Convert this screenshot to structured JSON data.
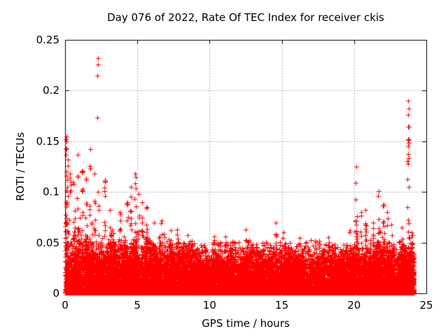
{
  "chart_data": {
    "type": "scatter",
    "title": "Day 076 of 2022, Rate Of TEC Index for receiver ckis",
    "xlabel": "GPS time / hours",
    "ylabel": "ROTI / TECUs",
    "xlim": [
      0,
      25
    ],
    "ylim": [
      0,
      0.25
    ],
    "xticks": {
      "values": [
        0,
        5,
        10,
        15,
        20,
        25
      ],
      "labels": [
        "0",
        "5",
        "10",
        "15",
        "20",
        "25"
      ]
    },
    "yticks": {
      "values": [
        0,
        0.05,
        0.1,
        0.15,
        0.2,
        0.25
      ],
      "labels": [
        "0",
        "0.05",
        "0.1",
        "0.15",
        "0.2",
        "0.25"
      ]
    },
    "grid": {
      "show": true,
      "style": "dotted",
      "color": "#b0b0b0"
    },
    "axis_color": "#000000",
    "background_color": "#ffffff",
    "marker": {
      "shape": "plus",
      "color": "#ff0000",
      "size": 7
    },
    "legend": "none",
    "x_data_range": [
      0,
      24.15
    ],
    "point_distribution": {
      "note": "Dense scatter of red '+' ROTI samples estimated from image: near-solid band 0-0.03 TECU all day, spiky canopy to ~0.05-0.07, large activity spikes near hours 0-6 and 20-24.",
      "baseline": {
        "n": 13500,
        "max": 0.042,
        "power": 2.4
      },
      "canopy_bin_hours": 0.5,
      "canopy_max": [
        0.1,
        0.085,
        0.075,
        0.075,
        0.072,
        0.07,
        0.065,
        0.065,
        0.07,
        0.075,
        0.075,
        0.07,
        0.06,
        0.06,
        0.055,
        0.055,
        0.05,
        0.052,
        0.048,
        0.046,
        0.05,
        0.048,
        0.05,
        0.046,
        0.048,
        0.055,
        0.046,
        0.048,
        0.05,
        0.06,
        0.052,
        0.048,
        0.046,
        0.047,
        0.046,
        0.046,
        0.05,
        0.046,
        0.047,
        0.054,
        0.065,
        0.062,
        0.06,
        0.065,
        0.065,
        0.058,
        0.052,
        0.062,
        0.05
      ],
      "trees": {
        "count": 270,
        "points_min": 6,
        "points_max": 14,
        "x_jitter": 0.14
      },
      "spikes": [
        [
          0.08,
          0.155,
          20
        ],
        [
          0.18,
          0.132,
          12
        ],
        [
          0.35,
          0.118,
          8
        ],
        [
          0.55,
          0.11,
          6
        ],
        [
          0.85,
          0.137,
          8
        ],
        [
          1.2,
          0.121,
          10
        ],
        [
          1.45,
          0.113,
          6
        ],
        [
          1.72,
          0.142,
          9
        ],
        [
          2.05,
          0.118,
          8
        ],
        [
          2.3,
          0.1,
          6
        ],
        [
          2.75,
          0.112,
          10
        ],
        [
          3.1,
          0.082,
          5
        ],
        [
          3.8,
          0.08,
          5
        ],
        [
          4.3,
          0.09,
          6
        ],
        [
          4.55,
          0.105,
          10
        ],
        [
          4.85,
          0.118,
          14
        ],
        [
          5.1,
          0.098,
          8
        ],
        [
          5.35,
          0.09,
          6
        ],
        [
          5.65,
          0.085,
          6
        ],
        [
          6.15,
          0.07,
          5
        ],
        [
          6.7,
          0.072,
          6
        ],
        [
          7.3,
          0.062,
          4
        ],
        [
          7.75,
          0.063,
          4
        ],
        [
          8.5,
          0.057,
          3
        ],
        [
          10.3,
          0.056,
          3
        ],
        [
          11.1,
          0.056,
          3
        ],
        [
          12.5,
          0.063,
          4
        ],
        [
          14.6,
          0.07,
          6
        ],
        [
          15.1,
          0.06,
          3
        ],
        [
          18.2,
          0.055,
          3
        ],
        [
          19.7,
          0.062,
          4
        ],
        [
          20.15,
          0.125,
          12
        ],
        [
          20.5,
          0.08,
          5
        ],
        [
          20.8,
          0.082,
          7
        ],
        [
          21.3,
          0.07,
          5
        ],
        [
          21.7,
          0.101,
          10
        ],
        [
          22.05,
          0.088,
          12
        ],
        [
          22.3,
          0.08,
          6
        ],
        [
          22.6,
          0.068,
          5
        ],
        [
          23.3,
          0.065,
          6
        ],
        [
          23.74,
          0.19,
          22
        ],
        [
          24.0,
          0.06,
          5
        ]
      ],
      "outliers": [
        [
          2.27,
          0.232
        ],
        [
          2.28,
          0.226
        ],
        [
          2.24,
          0.215
        ],
        [
          2.24,
          0.173
        ]
      ]
    }
  }
}
